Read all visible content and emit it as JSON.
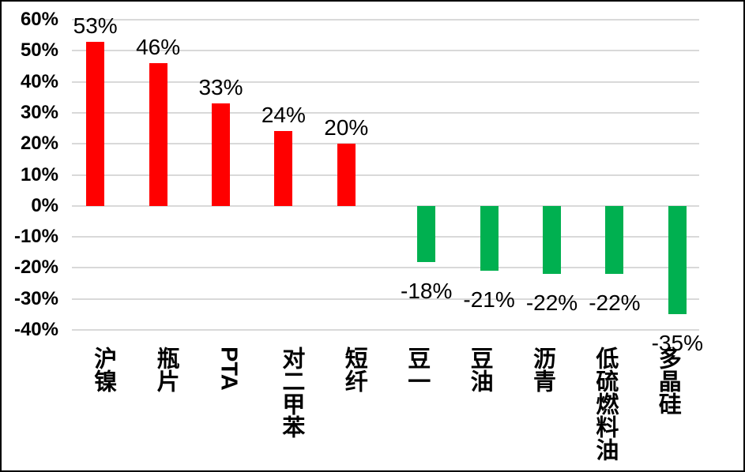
{
  "chart_data": {
    "type": "bar",
    "title": "",
    "categories": [
      "沪镍",
      "瓶片",
      "PTA",
      "对二甲苯",
      "短纤",
      "豆一",
      "豆油",
      "沥青",
      "低硫燃料油",
      "多晶硅"
    ],
    "values": [
      53,
      46,
      33,
      24,
      20,
      -18,
      -21,
      -22,
      -22,
      -35
    ],
    "value_labels": [
      "53%",
      "46%",
      "33%",
      "24%",
      "20%",
      "-18%",
      "-21%",
      "-22%",
      "-22%",
      "-35%"
    ],
    "y_ticks": [
      "60%",
      "50%",
      "40%",
      "30%",
      "20%",
      "10%",
      "0%",
      "-10%",
      "-20%",
      "-30%",
      "-40%"
    ],
    "ylim": [
      -40,
      60
    ],
    "grid": true,
    "legend": false,
    "colors": {
      "positive": "#FF0000",
      "negative": "#00B050",
      "gridline": "#D9D9D9",
      "text": "#000000",
      "background": "#FFFFFF",
      "border": "#000000"
    }
  }
}
